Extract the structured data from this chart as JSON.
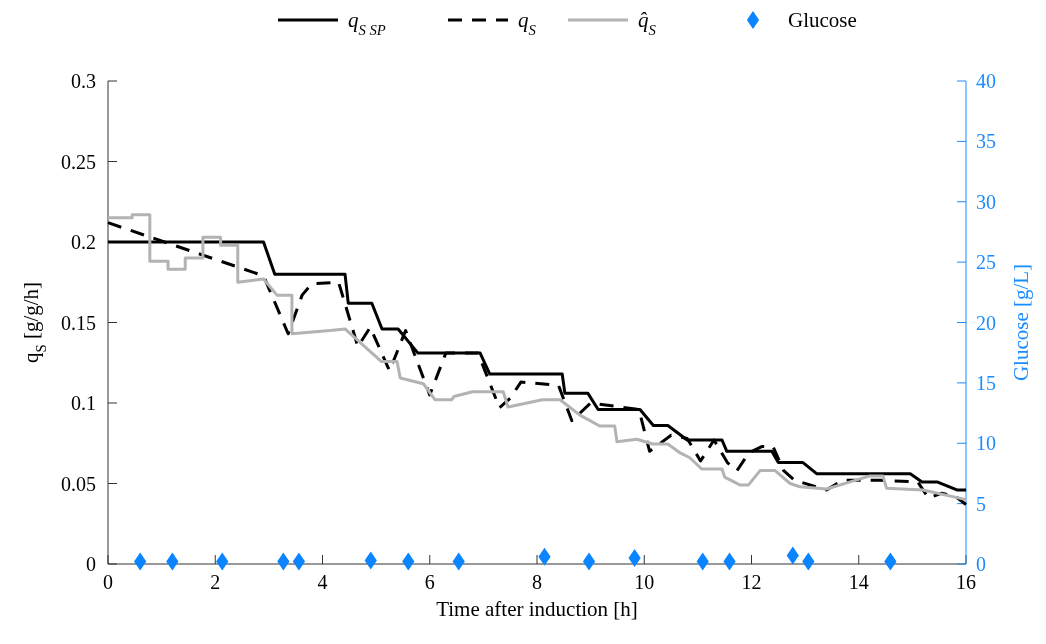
{
  "chart_data": {
    "type": "line",
    "xlabel": "Time after induction [h]",
    "ylabel": "q$_{S}$ [g/g/h]",
    "y2label": "Glucose [g/L]",
    "xlim": [
      0,
      16
    ],
    "xticks": [
      0,
      2,
      4,
      6,
      8,
      10,
      12,
      14,
      16
    ],
    "ylim": [
      0,
      0.3
    ],
    "yticks": [
      0,
      0.05,
      0.1,
      0.15,
      0.2,
      0.25,
      0.3
    ],
    "y2lim": [
      0,
      40
    ],
    "y2ticks": [
      0,
      5,
      10,
      15,
      20,
      25,
      30,
      35,
      40
    ],
    "grid": false,
    "legend": "top",
    "series": [
      {
        "name": "q$_{S SP}$",
        "color": "#000000",
        "line_style": "solid",
        "x": [
          0,
          2.9,
          3.11,
          4.42,
          4.48,
          4.92,
          5.11,
          5.41,
          5.78,
          6.94,
          7.12,
          8.47,
          8.52,
          8.95,
          9.14,
          9.92,
          10.17,
          10.44,
          10.8,
          11.45,
          11.54,
          12.38,
          12.5,
          12.96,
          13.22,
          14.96,
          15.18,
          15.46,
          15.83,
          16
        ],
        "values": [
          0.2,
          0.2,
          0.18,
          0.18,
          0.162,
          0.162,
          0.146,
          0.146,
          0.131,
          0.131,
          0.118,
          0.118,
          0.106,
          0.106,
          0.096,
          0.096,
          0.086,
          0.086,
          0.077,
          0.077,
          0.07,
          0.07,
          0.063,
          0.063,
          0.056,
          0.056,
          0.051,
          0.051,
          0.046,
          0.046
        ]
      },
      {
        "name": "q$_{S}$",
        "color": "#000000",
        "line_style": "dashed",
        "x": [
          0,
          2.9,
          3.36,
          3.62,
          3.8,
          4.3,
          4.66,
          4.89,
          5.25,
          5.55,
          6.0,
          6.3,
          6.9,
          7.3,
          7.5,
          7.7,
          8.4,
          8.65,
          9.0,
          9.9,
          10.1,
          10.5,
          10.8,
          11.05,
          11.3,
          11.55,
          11.73,
          11.95,
          12.2,
          12.4,
          12.6,
          12.8,
          13.4,
          13.7,
          14.4,
          15.1,
          15.3,
          15.55,
          15.8,
          16
        ],
        "values": [
          0.212,
          0.179,
          0.143,
          0.167,
          0.174,
          0.175,
          0.135,
          0.147,
          0.12,
          0.145,
          0.105,
          0.131,
          0.131,
          0.097,
          0.103,
          0.113,
          0.111,
          0.089,
          0.1,
          0.096,
          0.07,
          0.08,
          0.078,
          0.064,
          0.077,
          0.063,
          0.058,
          0.069,
          0.073,
          0.073,
          0.058,
          0.052,
          0.046,
          0.052,
          0.052,
          0.051,
          0.041,
          0.044,
          0.042,
          0.037
        ]
      },
      {
        "name": "q̂$_{S}$",
        "color": "#b3b3b3",
        "line_style": "solid",
        "x": [
          0,
          0.45,
          0.45,
          0.78,
          0.78,
          1.12,
          1.12,
          1.44,
          1.44,
          1.77,
          1.77,
          2.1,
          2.1,
          2.42,
          2.42,
          2.9,
          3.15,
          3.43,
          3.43,
          4.14,
          4.42,
          5.1,
          5.39,
          5.45,
          5.88,
          6.1,
          6.41,
          6.45,
          6.8,
          7.37,
          7.46,
          8.1,
          8.43,
          8.8,
          9.17,
          9.45,
          9.49,
          9.86,
          10.16,
          10.44,
          10.67,
          10.85,
          11.07,
          11.45,
          11.5,
          11.79,
          11.94,
          12.16,
          12.44,
          12.72,
          12.9,
          13.4,
          13.84,
          14.21,
          14.45,
          14.52,
          15.2,
          16
        ],
        "values": [
          0.215,
          0.215,
          0.217,
          0.217,
          0.188,
          0.188,
          0.183,
          0.183,
          0.19,
          0.19,
          0.203,
          0.203,
          0.198,
          0.198,
          0.175,
          0.177,
          0.167,
          0.167,
          0.143,
          0.145,
          0.146,
          0.1257,
          0.1257,
          0.1155,
          0.112,
          0.102,
          0.102,
          0.104,
          0.107,
          0.107,
          0.0975,
          0.102,
          0.102,
          0.0925,
          0.0857,
          0.0857,
          0.076,
          0.0775,
          0.0745,
          0.0745,
          0.069,
          0.066,
          0.059,
          0.059,
          0.054,
          0.049,
          0.049,
          0.058,
          0.058,
          0.05,
          0.048,
          0.0466,
          0.051,
          0.0547,
          0.0547,
          0.047,
          0.046,
          0.04
        ]
      },
      {
        "name": "Glucose",
        "type": "scatter",
        "axis": "y2",
        "marker": "diamond",
        "color": "#0a84ff",
        "x": [
          0.6,
          1.2,
          2.13,
          3.27,
          3.56,
          4.9,
          5.6,
          6.54,
          8.14,
          8.97,
          9.82,
          11.09,
          11.59,
          12.77,
          13.06,
          14.59
        ],
        "values": [
          0.2,
          0.2,
          0.2,
          0.2,
          0.2,
          0.3,
          0.2,
          0.2,
          0.6,
          0.2,
          0.5,
          0.2,
          0.2,
          0.7,
          0.2,
          0.2
        ]
      }
    ]
  }
}
